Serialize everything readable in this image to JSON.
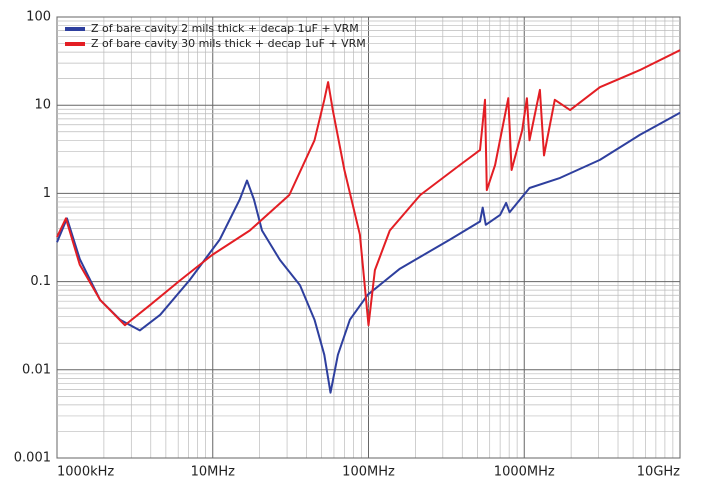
{
  "chart_data": {
    "type": "line",
    "log_x": true,
    "log_y": true,
    "grid": true,
    "minor_grid": true,
    "legend": "top-left",
    "xlim": [
      1,
      10000
    ],
    "ylim": [
      0.001,
      100
    ],
    "xticks": [
      {
        "value": 1,
        "label": "1000kHz"
      },
      {
        "value": 10,
        "label": "10MHz"
      },
      {
        "value": 100,
        "label": "100MHz"
      },
      {
        "value": 1000,
        "label": "1000MHz"
      },
      {
        "value": 10000,
        "label": "10GHz"
      }
    ],
    "yticks": [
      0.001,
      0.01,
      0.1,
      1,
      10,
      100
    ],
    "series": [
      {
        "name": "Z of bare cavity 2 mils thick + decap 1uF + VRM",
        "color": "#2e3f9e",
        "x": [
          1,
          1.16,
          1.4,
          1.89,
          2.54,
          3.4,
          4.6,
          7.1,
          11.1,
          14.9,
          16.6,
          18.4,
          20.7,
          27,
          36.3,
          45,
          52,
          57,
          63.6,
          76,
          99,
          159,
          334,
          520,
          541,
          566,
          700,
          765,
          805,
          1080,
          1700,
          3060,
          5520,
          10000
        ],
        "values": [
          0.28,
          0.52,
          0.18,
          0.062,
          0.037,
          0.028,
          0.042,
          0.104,
          0.3,
          0.85,
          1.4,
          0.85,
          0.38,
          0.176,
          0.091,
          0.037,
          0.0148,
          0.0055,
          0.0148,
          0.037,
          0.071,
          0.14,
          0.3,
          0.48,
          0.69,
          0.44,
          0.57,
          0.78,
          0.61,
          1.15,
          1.5,
          2.4,
          4.6,
          8.2
        ]
      },
      {
        "name": "Z of bare cavity 30 mils thick + decap 1uF + VRM",
        "color": "#e31e24",
        "x": [
          1,
          1.14,
          1.4,
          1.89,
          2.73,
          3.95,
          6.2,
          9.9,
          17.3,
          31,
          45,
          52,
          55,
          59,
          70,
          88,
          100,
          110,
          137,
          215,
          386,
          520,
          560,
          575,
          650,
          790,
          830,
          970,
          1040,
          1080,
          1260,
          1340,
          1570,
          1970,
          3060,
          5520,
          10000
        ],
        "values": [
          0.32,
          0.52,
          0.155,
          0.062,
          0.032,
          0.054,
          0.104,
          0.2,
          0.38,
          0.96,
          4,
          11.5,
          18.3,
          8.8,
          1.84,
          0.34,
          0.032,
          0.135,
          0.38,
          0.96,
          2.1,
          3.1,
          11.5,
          1.09,
          2.1,
          12,
          1.84,
          5.2,
          12,
          4,
          14.9,
          2.7,
          11.5,
          8.8,
          16,
          25,
          42
        ]
      }
    ]
  }
}
